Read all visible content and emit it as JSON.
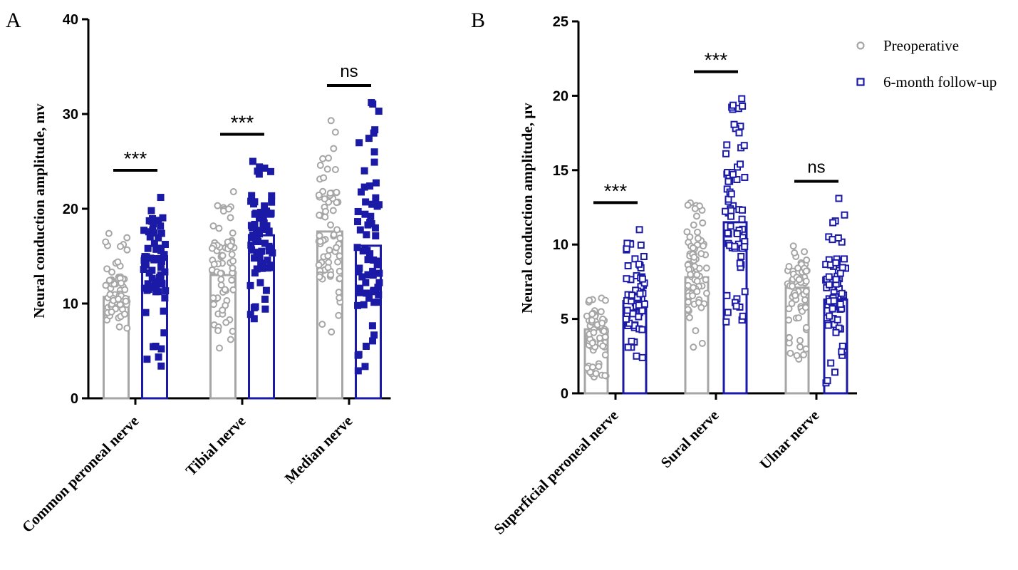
{
  "chart_data": [
    {
      "panel": "A",
      "type": "bar",
      "ylabel": "Neural conduction amplitude, mv",
      "ylim": [
        0,
        40
      ],
      "yticks": [
        "0",
        "10",
        "20",
        "30",
        "40"
      ],
      "categories": [
        "Common peroneal nerve",
        "Tibial nerve",
        "Median nerve"
      ],
      "series": [
        {
          "name": "Preoperative",
          "values": [
            10.7,
            13.0,
            17.6
          ],
          "range": [
            [
              7.4,
              17.4
            ],
            [
              5.3,
              21.8
            ],
            [
              7.0,
              29.3
            ]
          ]
        },
        {
          "name": "6-month follow-up",
          "values": [
            15.0,
            17.2,
            16.1
          ],
          "range": [
            [
              3.4,
              21.2
            ],
            [
              8.4,
              25.0
            ],
            [
              2.9,
              31.2
            ]
          ]
        }
      ],
      "significance": [
        "***",
        "***",
        "ns"
      ]
    },
    {
      "panel": "B",
      "type": "bar",
      "ylabel": "Neural conduction amplitude, μv",
      "ylim": [
        0,
        25
      ],
      "yticks": [
        "0",
        "5",
        "10",
        "15",
        "20",
        "25"
      ],
      "categories": [
        "Superficial peroneal nerve",
        "Sural nerve",
        "Ulnar nerve"
      ],
      "series": [
        {
          "name": "Preoperative",
          "values": [
            4.3,
            7.8,
            7.1
          ],
          "range": [
            [
              1.1,
              6.4
            ],
            [
              3.1,
              12.8
            ],
            [
              2.3,
              9.9
            ]
          ]
        },
        {
          "name": "6-month follow-up",
          "values": [
            6.2,
            11.5,
            6.3
          ],
          "range": [
            [
              2.4,
              11.0
            ],
            [
              4.8,
              19.8
            ],
            [
              0.7,
              13.1
            ]
          ]
        }
      ],
      "significance": [
        "***",
        "***",
        "ns"
      ]
    }
  ],
  "legend": {
    "items": [
      "Preoperative",
      "6-month follow-up"
    ]
  },
  "colors": {
    "preoperative": "#a6a6a6",
    "followup": "#1a1aa6"
  }
}
